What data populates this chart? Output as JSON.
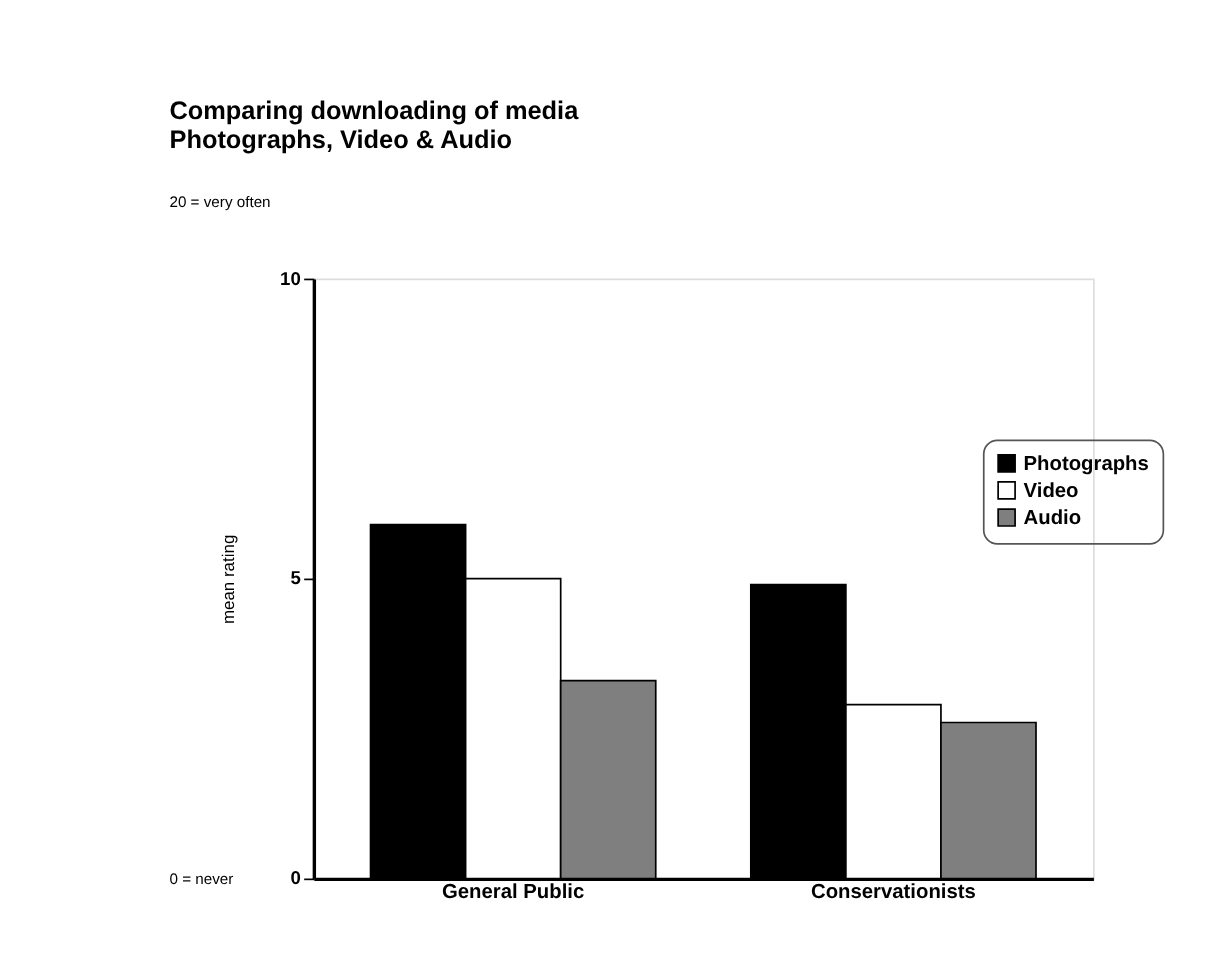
{
  "chart_data": {
    "type": "bar",
    "title": [
      "Comparing downloading of media",
      "Photographs, Video & Audio"
    ],
    "ylabel": "mean rating",
    "categories": [
      "General Public",
      "Conservationists"
    ],
    "series": [
      {
        "name": "Photographs",
        "color": "#000000",
        "values": [
          5.9,
          4.9
        ]
      },
      {
        "name": "Video",
        "color": "#ffffff",
        "values": [
          5.0,
          2.9
        ]
      },
      {
        "name": "Audio",
        "color": "#7f7f7f",
        "values": [
          3.3,
          2.6
        ]
      }
    ],
    "ylim": [
      0,
      10
    ],
    "yticks": [
      0,
      5,
      10
    ],
    "grid": false,
    "legend": "right",
    "annotations": [
      "20 = very often",
      "0 = never"
    ]
  }
}
